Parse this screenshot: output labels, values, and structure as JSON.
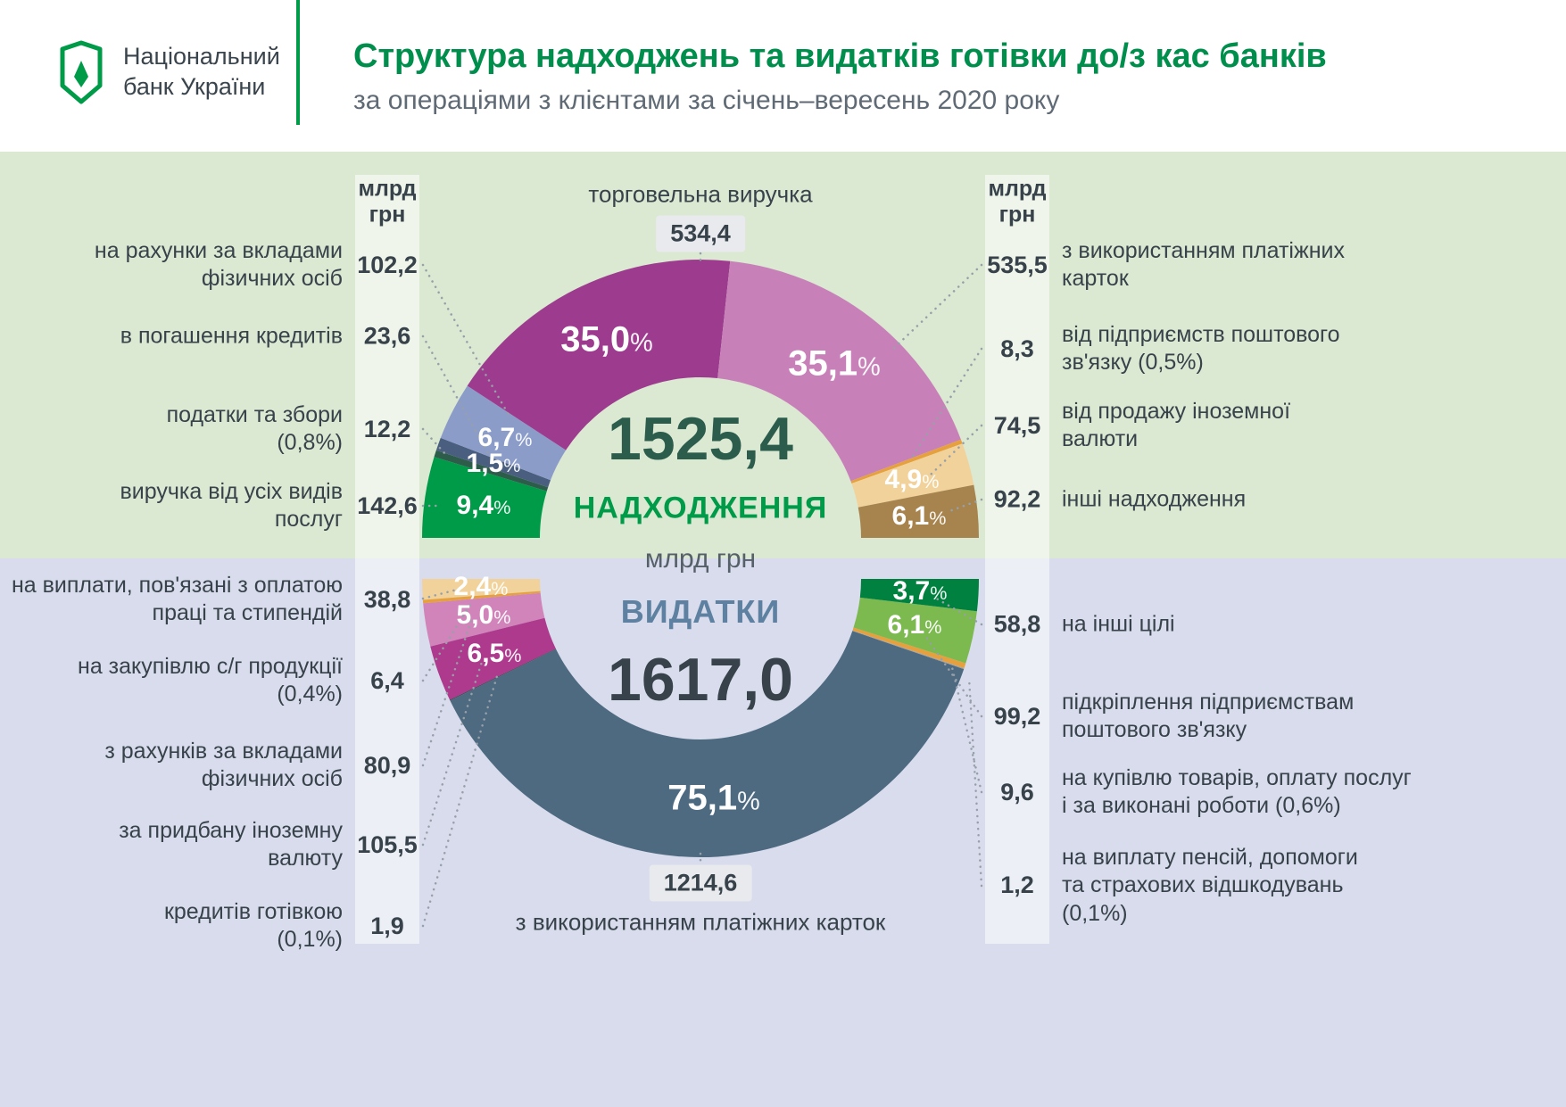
{
  "header": {
    "logo_line1": "Національний",
    "logo_line2": "банк України",
    "title": "Структура надходжень та видатків готівки до/з кас банків",
    "subtitle": "за операціями з клієнтами за січень–вересень 2020 року"
  },
  "columns": {
    "left_header": "млрд\nгрн",
    "right_header": "млрд\nгрн"
  },
  "center": {
    "receipts_total": "1525,4",
    "receipts_title": "НАДХОДЖЕННЯ",
    "unit": "млрд грн",
    "expenditures_title": "ВИДАТКИ",
    "expenditures_total": "1617,0"
  },
  "labels": {
    "top_callout": {
      "text": "торговельна виручка",
      "value": "534,4"
    },
    "bottom_callout": {
      "text": "з використанням платіжних карток",
      "value": "1214,6"
    },
    "left_top": [
      {
        "text": "на рахунки за вкладами\nфізичних осіб",
        "value": "102,2"
      },
      {
        "text": "в погашення кредитів",
        "value": "23,6"
      },
      {
        "text": "податки та збори\n(0,8%)",
        "value": "12,2"
      },
      {
        "text": "виручка від усіх видів\nпослуг",
        "value": "142,6"
      }
    ],
    "right_top": [
      {
        "text": "з використанням платіжних\nкарток",
        "value": "535,5"
      },
      {
        "text": "від підприємств поштового\nзв'язку (0,5%)",
        "value": "8,3"
      },
      {
        "text": "від продажу іноземної\nвалюти",
        "value": "74,5"
      },
      {
        "text": "інші надходження",
        "value": "92,2"
      }
    ],
    "left_bottom": [
      {
        "text": "на виплати, пов'язані з оплатою\nпраці та стипендій",
        "value": "38,8"
      },
      {
        "text": "на закупівлю с/г продукції\n(0,4%)",
        "value": "6,4"
      },
      {
        "text": "з рахунків за вкладами\nфізичних осіб",
        "value": "80,9"
      },
      {
        "text": "за придбану іноземну\nвалюту",
        "value": "105,5"
      },
      {
        "text": "кредитів готівкою\n(0,1%)",
        "value": "1,9"
      }
    ],
    "right_bottom": [
      {
        "text": "на інші цілі",
        "value": "58,8"
      },
      {
        "text": "підкріплення підприємствам\nпоштового зв'язку",
        "value": "99,2"
      },
      {
        "text": "на купівлю товарів, оплату послуг\nі за виконані роботи (0,6%)",
        "value": "9,6"
      },
      {
        "text": "на виплату пенсій, допомоги\nта страхових відшкодувань\n(0,1%)",
        "value": "1,2"
      }
    ]
  },
  "chart_data": {
    "type": "pie",
    "subtype": "double-half-donut",
    "title": "Структура надходжень та видатків готівки до/з кас банків",
    "unit": "млрд грн",
    "halves": [
      {
        "id": "receipts",
        "title": "НАДХОДЖЕННЯ",
        "total": 1525.4,
        "total_label": "1525,4",
        "segments": [
          {
            "name": "виручка від усіх видів послуг",
            "value": 142.6,
            "pct": 9.4,
            "pct_label": "9,4",
            "color": "#009b48",
            "big": false
          },
          {
            "name": "податки та збори",
            "value": 12.2,
            "pct": 0.8,
            "pct_label": "",
            "color": "#2d5c4b",
            "big": false
          },
          {
            "name": "в погашення кредитів",
            "value": 23.6,
            "pct": 1.5,
            "pct_label": "1,5",
            "color": "#4a5f80",
            "big": false
          },
          {
            "name": "на рахунки за вкладами фізичних осіб",
            "value": 102.2,
            "pct": 6.7,
            "pct_label": "6,7",
            "color": "#8b9cc9",
            "big": false
          },
          {
            "name": "торговельна виручка",
            "value": 534.4,
            "pct": 35.0,
            "pct_label": "35,0",
            "color": "#9d3b8e",
            "big": true
          },
          {
            "name": "з використанням платіжних карток",
            "value": 535.5,
            "pct": 35.1,
            "pct_label": "35,1",
            "color": "#c881b8",
            "big": true
          },
          {
            "name": "від підприємств поштового зв'язку",
            "value": 8.3,
            "pct": 0.5,
            "pct_label": "",
            "color": "#e6a13e",
            "big": false
          },
          {
            "name": "від продажу іноземної валюти",
            "value": 74.5,
            "pct": 4.9,
            "pct_label": "4,9",
            "color": "#f2d29b",
            "big": false
          },
          {
            "name": "інші надходження",
            "value": 92.2,
            "pct": 6.1,
            "pct_label": "6,1",
            "color": "#a7834e",
            "big": false
          }
        ]
      },
      {
        "id": "expenditures",
        "title": "ВИДАТКИ",
        "total": 1617.0,
        "total_label": "1617,0",
        "segments": [
          {
            "name": "на виплати, пов'язані з оплатою праці та стипендій",
            "value": 38.8,
            "pct": 2.4,
            "pct_label": "2,4",
            "color": "#f2d29b",
            "big": false
          },
          {
            "name": "на закупівлю с/г продукції",
            "value": 6.4,
            "pct": 0.4,
            "pct_label": "",
            "color": "#e6a13e",
            "big": false
          },
          {
            "name": "з рахунків за вкладами фізичних осіб",
            "value": 80.9,
            "pct": 5.0,
            "pct_label": "5,0",
            "color": "#d084b9",
            "big": false
          },
          {
            "name": "за придбану іноземну валюту",
            "value": 105.5,
            "pct": 6.5,
            "pct_label": "6,5",
            "color": "#ad3a8c",
            "big": false
          },
          {
            "name": "кредитів готівкою",
            "value": 1.9,
            "pct": 0.1,
            "pct_label": "",
            "color": "#37424a",
            "big": false
          },
          {
            "name": "з використанням платіжних карток",
            "value": 1214.6,
            "pct": 75.1,
            "pct_label": "75,1",
            "color": "#4e6a80",
            "big": true
          },
          {
            "name": "на виплату пенсій, допомоги та страхових відшкодувань",
            "value": 1.2,
            "pct": 0.1,
            "pct_label": "",
            "color": "#98a1a8",
            "big": false
          },
          {
            "name": "на купівлю товарів, оплату послуг і за виконані роботи",
            "value": 9.6,
            "pct": 0.6,
            "pct_label": "",
            "color": "#e6a13e",
            "big": false
          },
          {
            "name": "підкріплення підприємствам поштового зв'язку",
            "value": 99.2,
            "pct": 6.1,
            "pct_label": "6,1",
            "color": "#7cb94f",
            "big": false
          },
          {
            "name": "на інші цілі",
            "value": 58.8,
            "pct": 3.7,
            "pct_label": "3,7",
            "color": "#00813f",
            "big": false
          }
        ]
      }
    ]
  }
}
